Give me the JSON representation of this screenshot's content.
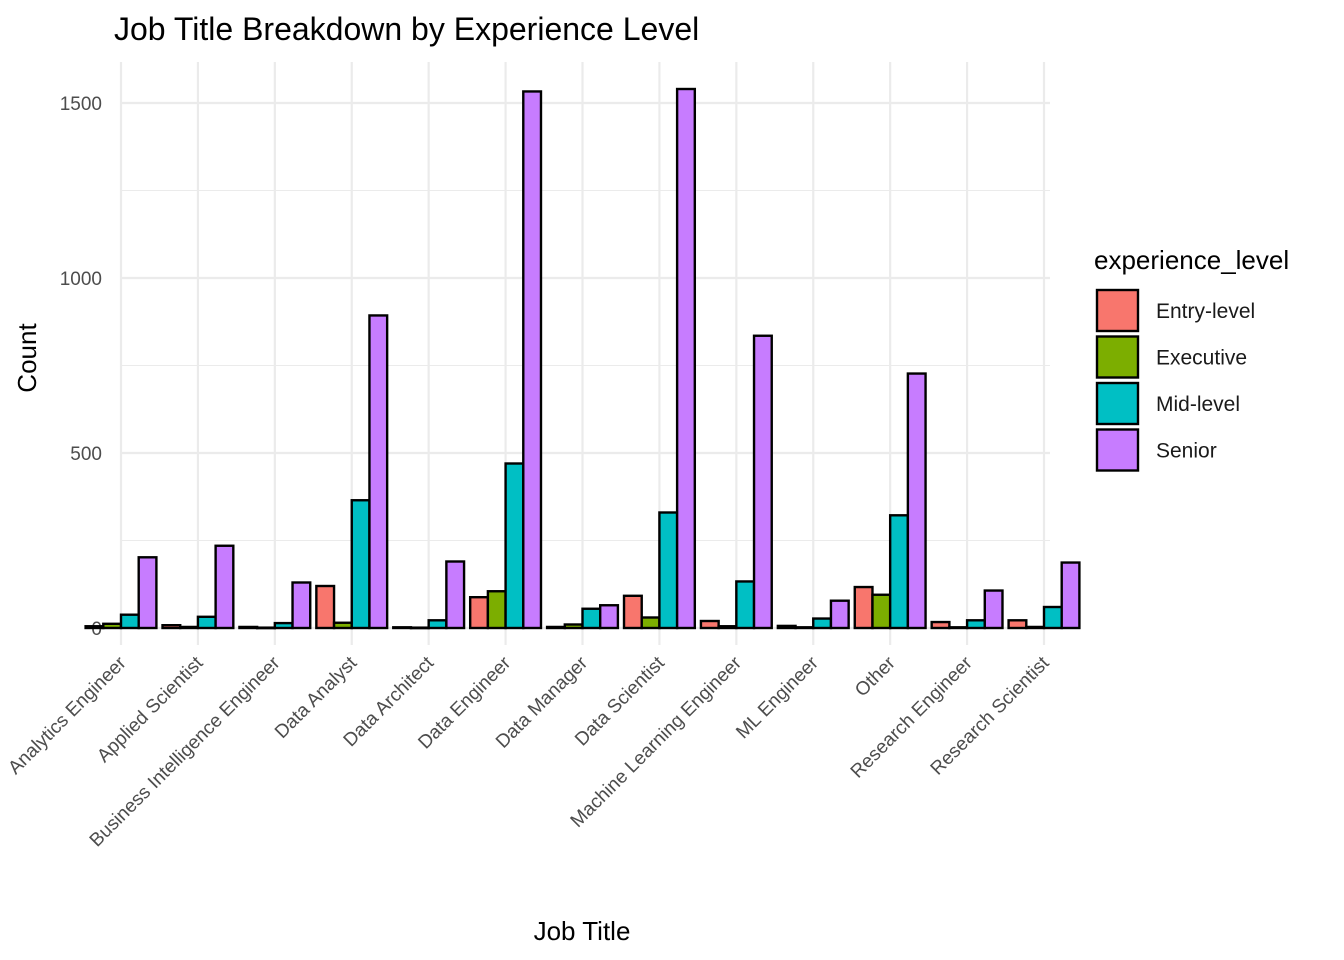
{
  "chart_data": {
    "type": "bar",
    "title": "Job Title Breakdown by Experience Level",
    "xlabel": "Job Title",
    "ylabel": "Count",
    "ylim": [
      0,
      1600
    ],
    "yticks": [
      0,
      500,
      1000,
      1500
    ],
    "grid": true,
    "legend": {
      "title": "experience_level",
      "position": "right"
    },
    "categories": [
      "Analytics Engineer",
      "Applied Scientist",
      "Business Intelligence Engineer",
      "Data Analyst",
      "Data Architect",
      "Data Engineer",
      "Data Manager",
      "Data Scientist",
      "Machine Learning Engineer",
      "ML Engineer",
      "Other",
      "Research Engineer",
      "Research Scientist"
    ],
    "series": [
      {
        "name": "Entry-level",
        "color": "#F8766D",
        "values": [
          5,
          8,
          3,
          120,
          2,
          88,
          3,
          92,
          20,
          6,
          117,
          17,
          22
        ]
      },
      {
        "name": "Executive",
        "color": "#7CAE00",
        "values": [
          12,
          3,
          1,
          15,
          1,
          105,
          10,
          30,
          5,
          2,
          95,
          2,
          3
        ]
      },
      {
        "name": "Mid-level",
        "color": "#00BFC4",
        "values": [
          38,
          32,
          14,
          365,
          22,
          470,
          55,
          330,
          133,
          27,
          322,
          22,
          60
        ]
      },
      {
        "name": "Senior",
        "color": "#C77CFF",
        "values": [
          202,
          235,
          130,
          893,
          190,
          1533,
          65,
          1540,
          835,
          78,
          727,
          107,
          187
        ]
      }
    ]
  }
}
